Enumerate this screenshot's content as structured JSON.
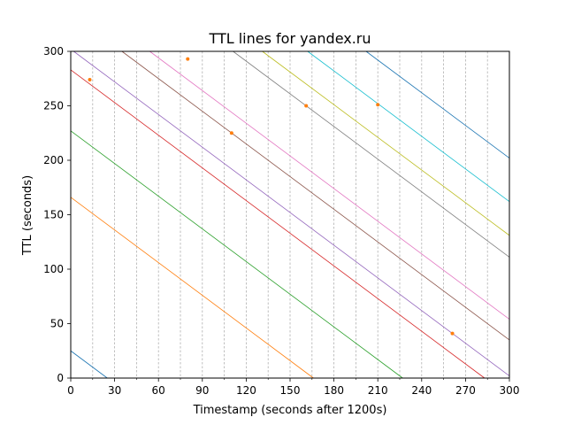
{
  "chart_data": {
    "type": "line",
    "title": "TTL lines for yandex.ru",
    "xlabel": "Timestamp (seconds after 1200s)",
    "ylabel": "TTL (seconds)",
    "xlim": [
      0,
      300
    ],
    "ylim": [
      0,
      300
    ],
    "xticks": [
      0,
      30,
      60,
      90,
      120,
      150,
      180,
      210,
      240,
      270,
      300
    ],
    "yticks": [
      0,
      50,
      100,
      150,
      200,
      250,
      300
    ],
    "vertical_gridlines_every": 15,
    "grid_style": "dashed grey vertical lines",
    "series": [
      {
        "color": "#1f77b4",
        "x": [
          0,
          25
        ],
        "y": [
          25,
          0
        ]
      },
      {
        "color": "#ff7f0e",
        "x": [
          0,
          166
        ],
        "y": [
          166,
          0
        ]
      },
      {
        "color": "#2ca02c",
        "x": [
          0,
          227
        ],
        "y": [
          227,
          0
        ]
      },
      {
        "color": "#d62728",
        "x": [
          0,
          283
        ],
        "y": [
          283,
          0
        ]
      },
      {
        "color": "#9467bd",
        "x": [
          2,
          300
        ],
        "y": [
          300,
          2
        ]
      },
      {
        "color": "#8c564b",
        "x": [
          35,
          300
        ],
        "y": [
          300,
          35
        ]
      },
      {
        "color": "#e377c2",
        "x": [
          54,
          300
        ],
        "y": [
          300,
          54
        ]
      },
      {
        "color": "#7f7f7f",
        "x": [
          111,
          300
        ],
        "y": [
          300,
          111
        ]
      },
      {
        "color": "#bcbd22",
        "x": [
          131,
          300
        ],
        "y": [
          300,
          131
        ]
      },
      {
        "color": "#17becf",
        "x": [
          162,
          300
        ],
        "y": [
          300,
          162
        ]
      },
      {
        "color": "#1f77b4",
        "x": [
          202,
          300
        ],
        "y": [
          300,
          202
        ]
      }
    ],
    "markers": {
      "color": "#ff7f0e",
      "points": [
        {
          "x": 13,
          "y": 274
        },
        {
          "x": 80,
          "y": 293
        },
        {
          "x": 110,
          "y": 225
        },
        {
          "x": 161,
          "y": 250
        },
        {
          "x": 210,
          "y": 251
        },
        {
          "x": 261,
          "y": 41
        }
      ]
    }
  }
}
